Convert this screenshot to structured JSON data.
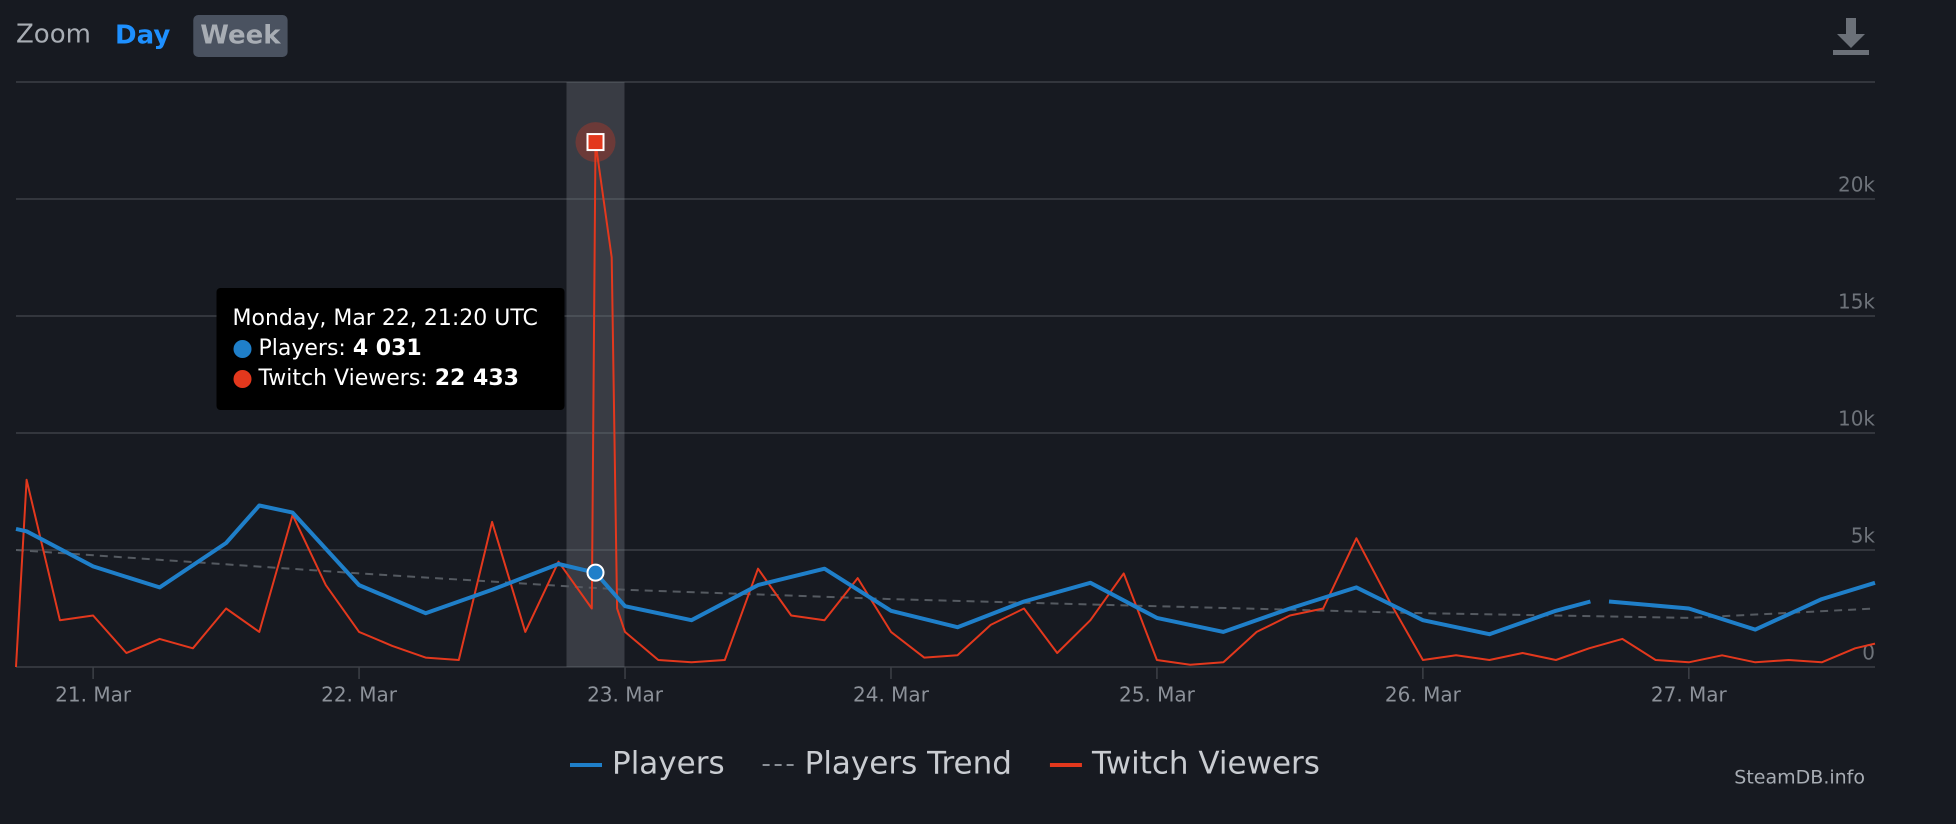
{
  "chart_data": {
    "type": "line",
    "zoom": {
      "label": "Zoom",
      "buttons": [
        "Day",
        "Week"
      ],
      "active": "Week"
    },
    "credit": "SteamDB.info",
    "grid": true,
    "xlim": [
      20.71,
      27.7
    ],
    "xticks": [
      {
        "value": 21,
        "label": "21. Mar"
      },
      {
        "value": 22,
        "label": "22. Mar"
      },
      {
        "value": 23,
        "label": "23. Mar"
      },
      {
        "value": 24,
        "label": "24. Mar"
      },
      {
        "value": 25,
        "label": "25. Mar"
      },
      {
        "value": 26,
        "label": "26. Mar"
      },
      {
        "value": 27,
        "label": "27. Mar"
      }
    ],
    "ylim": [
      0,
      25000
    ],
    "yticks": [
      0,
      {
        "value": 5000,
        "label": "5k"
      },
      {
        "value": 10000,
        "label": "10k"
      },
      {
        "value": 15000,
        "label": "15k"
      },
      {
        "value": 20000,
        "label": "20k"
      }
    ],
    "series": [
      {
        "name": "Players",
        "color": "#1f7fc9",
        "style": "solid",
        "x": [
          20.71,
          20.75,
          21,
          21.25,
          21.5,
          21.625,
          21.75,
          22,
          22.25,
          22.5,
          22.75,
          22.889,
          23,
          23.25,
          23.5,
          23.75,
          24,
          24.25,
          24.5,
          24.75,
          25,
          25.25,
          25.5,
          25.75,
          26,
          26.25,
          26.5,
          26.63,
          26.66,
          26.7,
          27,
          27.25,
          27.5,
          27.7
        ],
        "values": [
          5900,
          5800,
          4300,
          3400,
          5300,
          6900,
          6600,
          3500,
          2300,
          3300,
          4400,
          4031,
          2600,
          2000,
          3500,
          4200,
          2400,
          1700,
          2800,
          3600,
          2100,
          1500,
          2500,
          3400,
          2000,
          1400,
          2400,
          2800,
          null,
          2800,
          2500,
          1600,
          2900,
          3600
        ]
      },
      {
        "name": "Players Trend",
        "color": "#555a61",
        "style": "dashed",
        "x": [
          20.71,
          22,
          23,
          24,
          25,
          26,
          27,
          27.7
        ],
        "values": [
          5000,
          4000,
          3300,
          2900,
          2600,
          2300,
          2100,
          2500
        ]
      },
      {
        "name": "Twitch Viewers",
        "color": "#e3381d",
        "style": "solid",
        "x": [
          20.71,
          20.75,
          20.875,
          21,
          21.125,
          21.25,
          21.375,
          21.5,
          21.625,
          21.75,
          21.875,
          22,
          22.125,
          22.25,
          22.375,
          22.5,
          22.625,
          22.75,
          22.875,
          22.889,
          22.95,
          22.97,
          23,
          23.125,
          23.25,
          23.375,
          23.5,
          23.625,
          23.75,
          23.875,
          24,
          24.125,
          24.25,
          24.375,
          24.5,
          24.625,
          24.75,
          24.875,
          25,
          25.125,
          25.25,
          25.375,
          25.5,
          25.625,
          25.75,
          25.875,
          26,
          26.125,
          26.25,
          26.375,
          26.5,
          26.625,
          26.75,
          26.875,
          27,
          27.125,
          27.25,
          27.375,
          27.5,
          27.625,
          27.7
        ],
        "values": [
          0,
          8000,
          2000,
          2200,
          600,
          1200,
          800,
          2500,
          1500,
          6500,
          3500,
          1500,
          900,
          400,
          300,
          6200,
          1500,
          4500,
          2500,
          22433,
          17500,
          2500,
          1500,
          300,
          200,
          300,
          4200,
          2200,
          2000,
          3800,
          1500,
          400,
          500,
          1800,
          2500,
          600,
          2000,
          4000,
          300,
          100,
          200,
          1500,
          2200,
          2500,
          5500,
          2800,
          300,
          500,
          300,
          600,
          300,
          800,
          1200,
          300,
          200,
          500,
          200,
          300,
          200,
          800,
          1000
        ]
      }
    ],
    "tooltip": {
      "x": 22.889,
      "title": "Monday, Mar 22, 21:20 UTC",
      "items": [
        {
          "label": "Players:",
          "value": "4 031"
        },
        {
          "label": "Twitch Viewers:",
          "value": "22 433"
        }
      ]
    }
  }
}
